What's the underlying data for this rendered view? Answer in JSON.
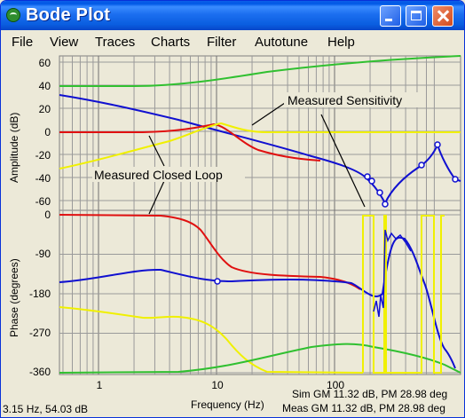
{
  "window": {
    "title": "Bode Plot"
  },
  "menu": [
    "File",
    "View",
    "Traces",
    "Charts",
    "Filter",
    "Autotune",
    "Help"
  ],
  "amplitude_axis": {
    "label": "Amplitude (dB)",
    "ticks": [
      "60",
      "40",
      "20",
      "0",
      "-20",
      "-40",
      "-60"
    ]
  },
  "phase_axis": {
    "label": "Phase (degrees)",
    "ticks": [
      "0",
      "-90",
      "-180",
      "-270",
      "-360"
    ]
  },
  "frequency_axis": {
    "label": "Frequency (Hz)",
    "ticks": [
      "1",
      "10",
      "100"
    ]
  },
  "annotations": {
    "sensitivity": "Measured Sensitivity",
    "closed_loop": "Measured Closed Loop"
  },
  "status": {
    "cursor": "3.15 Hz, 54.03 dB",
    "sim": "Sim GM 11.32 dB, PM 28.98 deg",
    "meas": "Meas GM 11.32 dB, PM 28.98 deg"
  },
  "colors": {
    "blue": "#1010d0",
    "red": "#e01010",
    "yellow": "#f0f000",
    "green": "#30c030",
    "background": "#ece9d8",
    "grid": "#9a9a9a"
  }
}
